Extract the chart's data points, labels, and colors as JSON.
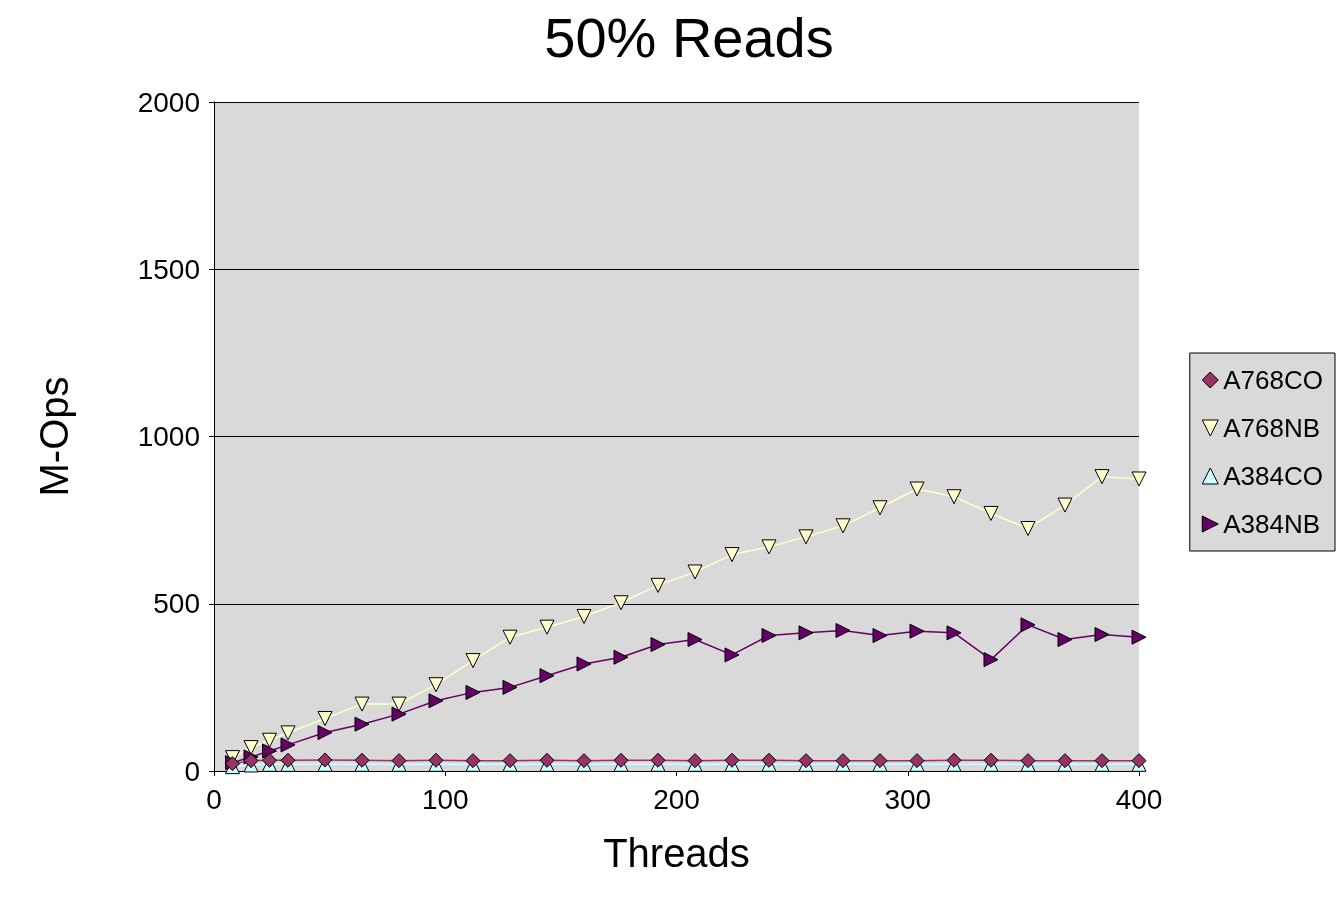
{
  "chart_data": {
    "type": "line",
    "title": "50% Reads",
    "xlabel": "Threads",
    "ylabel": "M-Ops",
    "xlim": [
      0,
      400
    ],
    "xticks": [
      0,
      100,
      200,
      300,
      400
    ],
    "ylim": [
      0,
      2000
    ],
    "yticks": [
      0,
      500,
      1000,
      1500,
      2000
    ],
    "grid": "y",
    "legend": "right",
    "x": [
      8,
      16,
      24,
      32,
      48,
      64,
      80,
      96,
      112,
      128,
      144,
      160,
      176,
      192,
      208,
      224,
      240,
      256,
      272,
      288,
      304,
      320,
      336,
      352,
      368,
      384,
      400
    ],
    "series": [
      {
        "name": "A768CO",
        "color": "#993366",
        "marker": "diamond",
        "values": [
          22,
          31,
          32,
          32,
          33,
          32,
          31,
          32,
          31,
          31,
          32,
          31,
          32,
          32,
          31,
          32,
          32,
          31,
          31,
          31,
          31,
          32,
          32,
          31,
          31,
          31,
          31
        ]
      },
      {
        "name": "A768NB",
        "color": "#ffffcc",
        "marker": "triangle-down",
        "values": [
          40,
          70,
          92,
          114,
          157,
          200,
          200,
          258,
          330,
          400,
          430,
          462,
          503,
          555,
          595,
          647,
          670,
          700,
          733,
          787,
          843,
          820,
          770,
          725,
          795,
          880,
          873
        ]
      },
      {
        "name": "A384CO",
        "color": "#ccffff",
        "marker": "triangle",
        "values": [
          13,
          18,
          20,
          20,
          20,
          20,
          20,
          20,
          20,
          20,
          20,
          20,
          20,
          20,
          20,
          20,
          20,
          20,
          20,
          20,
          20,
          20,
          20,
          20,
          20,
          20,
          20
        ]
      },
      {
        "name": "A384NB",
        "color": "#660066",
        "marker": "triangle-right",
        "values": [
          25,
          42,
          60,
          78,
          115,
          140,
          170,
          210,
          235,
          250,
          285,
          320,
          340,
          378,
          393,
          347,
          405,
          413,
          420,
          405,
          418,
          413,
          333,
          437,
          393,
          408,
          400
        ]
      }
    ]
  }
}
